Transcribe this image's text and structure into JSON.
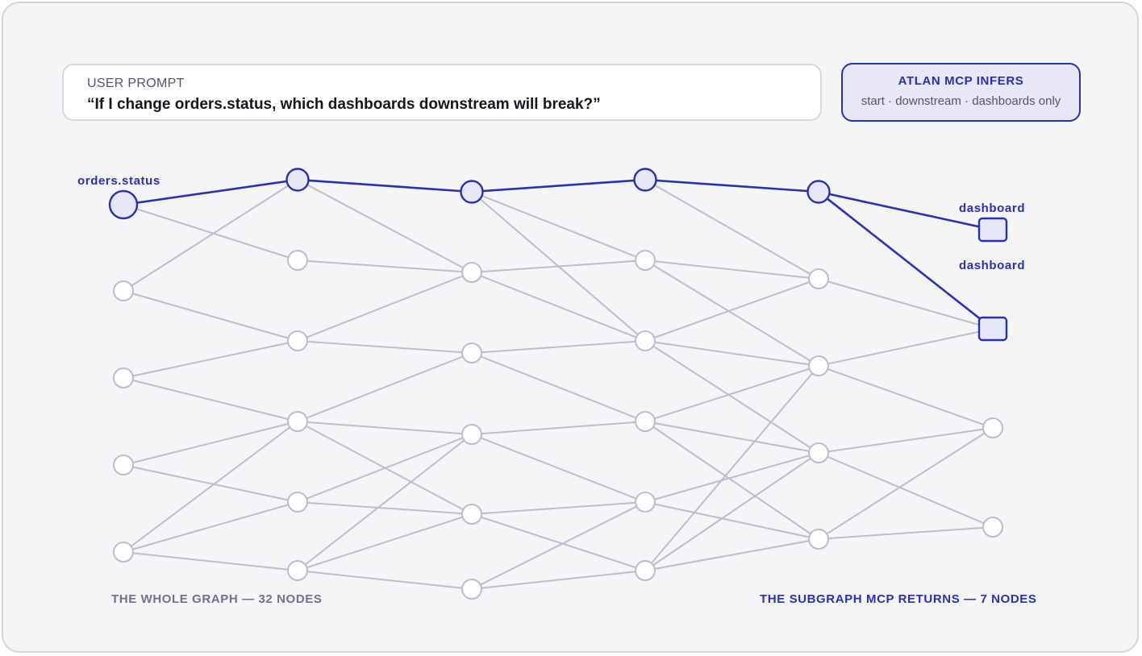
{
  "prompt": {
    "label": "USER PROMPT",
    "text": "“If I change orders.status, which dashboards downstream will break?”"
  },
  "inference": {
    "title": "ATLAN MCP INFERS",
    "details": "start · downstream · dashboards only"
  },
  "graph": {
    "start_label": "orders.status",
    "dashboard_labels": [
      "dashboard",
      "dashboard"
    ],
    "highlight_color": "#2a2fb8",
    "edge_color": "#bdbccb",
    "node_count": "32 NODES",
    "subgraph_count": "7 NODES"
  },
  "captions": {
    "whole_graph": "THE WHOLE GRAPH — 32 NODES",
    "subgraph": "THE SUBGRAPH MCP RETURNS — 7 NODES"
  }
}
